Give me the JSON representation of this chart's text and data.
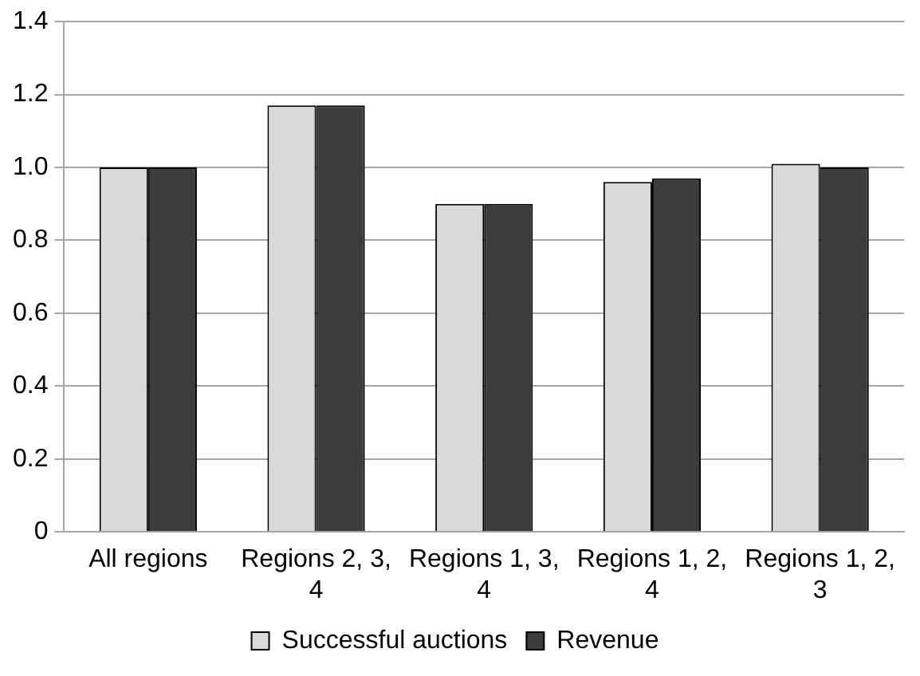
{
  "chart_data": {
    "type": "bar",
    "categories": [
      "All regions",
      "Regions 2, 3, 4",
      "Regions 1, 3, 4",
      "Regions 1, 2, 4",
      "Regions 1, 2, 3"
    ],
    "series": [
      {
        "name": "Successful auctions",
        "color": "#d9d9d9",
        "values": [
          1.0,
          1.17,
          0.9,
          0.96,
          1.01
        ]
      },
      {
        "name": "Revenue",
        "color": "#3c3c3c",
        "values": [
          1.0,
          1.17,
          0.9,
          0.97,
          1.0
        ]
      }
    ],
    "ylim": [
      0,
      1.4
    ],
    "yticks": [
      0,
      0.2,
      0.4,
      0.6,
      0.8,
      {
        "value": 1,
        "label": "1.0"
      },
      1.2,
      1.4
    ],
    "grid": "y",
    "legend": "bottom"
  }
}
